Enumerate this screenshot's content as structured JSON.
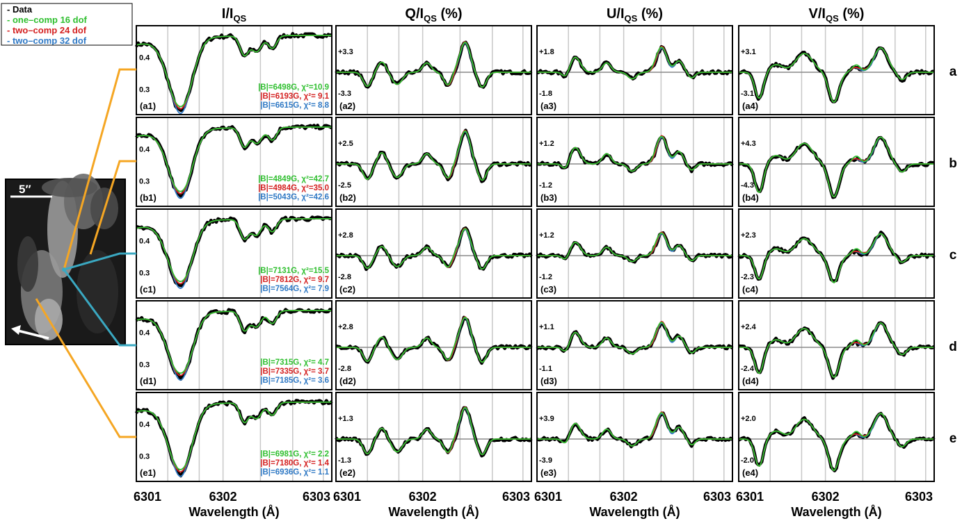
{
  "chart_data": {
    "type": "line",
    "column_titles": [
      {
        "main": "I/I",
        "sub": "QS",
        "suffix": ""
      },
      {
        "main": "Q/I",
        "sub": "QS",
        "suffix": " (%)"
      },
      {
        "main": "U/I",
        "sub": "QS",
        "suffix": " (%)"
      },
      {
        "main": "V/I",
        "sub": "QS",
        "suffix": " (%)"
      }
    ],
    "row_labels": [
      "a",
      "b",
      "c",
      "d",
      "e"
    ],
    "xlabel": "Wavelength (Å)",
    "xlim": [
      6300.98,
      6303.28
    ],
    "x_ticks": [
      "6301",
      "6302",
      "6303"
    ],
    "x_tick_values": [
      6301,
      6302,
      6303
    ],
    "grid_x": [
      6301.35,
      6301.72,
      6302.0,
      6302.44,
      6302.82,
      6303.18
    ],
    "legend": [
      {
        "label": "Data",
        "color": "#000000"
      },
      {
        "label": "one–comp 16 dof",
        "color": "#2fbf2f"
      },
      {
        "label": "two–comp 24 dof",
        "color": "#d42020"
      },
      {
        "label": "two–comp 32 dof",
        "color": "#2e78c4"
      }
    ],
    "series_colors": {
      "data": "#000000",
      "one": "#2fbf2f",
      "two24": "#d42020",
      "two32": "#2e78c4"
    },
    "intensity_ticks": [
      "0.4",
      "0.3"
    ],
    "intensity_tick_values": [
      0.4,
      0.3
    ],
    "intensity_ylim": [
      0.22,
      0.5
    ],
    "panel_labels": [
      [
        "(a1)",
        "(a2)",
        "(a3)",
        "(a4)"
      ],
      [
        "(b1)",
        "(b2)",
        "(b3)",
        "(b4)"
      ],
      [
        "(c1)",
        "(c2)",
        "(c3)",
        "(c4)"
      ],
      [
        "(d1)",
        "(d2)",
        "(d3)",
        "(d4)"
      ],
      [
        "(e1)",
        "(e2)",
        "(e3)",
        "(e4)"
      ]
    ],
    "polarization_ticks": [
      {
        "Q": [
          "+3.3",
          "-3.3"
        ],
        "U": [
          "+1.8",
          "-1.8"
        ],
        "V": [
          "+3.1",
          "-3.1"
        ]
      },
      {
        "Q": [
          "+2.5",
          "-2.5"
        ],
        "U": [
          "+1.2",
          "-1.2"
        ],
        "V": [
          "+4.3",
          "-4.3"
        ]
      },
      {
        "Q": [
          "+2.8",
          "-2.8"
        ],
        "U": [
          "+1.2",
          "-1.2"
        ],
        "V": [
          "+2.3",
          "-2.3"
        ]
      },
      {
        "Q": [
          "+2.8",
          "-2.8"
        ],
        "U": [
          "+1.1",
          "-1.1"
        ],
        "V": [
          "+2.4",
          "-2.4"
        ]
      },
      {
        "Q": [
          "+1.3",
          "-1.3"
        ],
        "U": [
          "+3.9",
          "-3.9"
        ],
        "V": [
          "+2.0",
          "-2.0"
        ]
      }
    ],
    "fit_annotations": [
      [
        {
          "text": "|B|=6498G, χ²=10.9",
          "color": "#2fbf2f"
        },
        {
          "text": "|B|=6193G, χ²= 9.1",
          "color": "#d42020"
        },
        {
          "text": "|B|=6615G, χ²= 8.8",
          "color": "#2e78c4"
        }
      ],
      [
        {
          "text": "|B|=4849G, χ²=42.7",
          "color": "#2fbf2f"
        },
        {
          "text": "|B|=4984G, χ²=35.0",
          "color": "#d42020"
        },
        {
          "text": "|B|=5043G, χ²=42.6",
          "color": "#2e78c4"
        }
      ],
      [
        {
          "text": "|B|=7131G, χ²=15.5",
          "color": "#2fbf2f"
        },
        {
          "text": "|B|=7812G, χ²= 9.7",
          "color": "#d42020"
        },
        {
          "text": "|B|=7564G, χ²= 7.9",
          "color": "#2e78c4"
        }
      ],
      [
        {
          "text": "|B|=7315G, χ²= 4.7",
          "color": "#2fbf2f"
        },
        {
          "text": "|B|=7335G, χ²= 3.7",
          "color": "#d42020"
        },
        {
          "text": "|B|=7185G, χ²= 3.6",
          "color": "#2e78c4"
        }
      ],
      [
        {
          "text": "|B|=6981G, χ²= 2.2",
          "color": "#2fbf2f"
        },
        {
          "text": "|B|=7180G, χ²= 1.4",
          "color": "#d42020"
        },
        {
          "text": "|B|=6936G, χ²= 1.1",
          "color": "#2e78c4"
        }
      ]
    ],
    "image_scale_label": "5′′",
    "connector_colors": {
      "orange": "#f5a623",
      "teal": "#3aa8c1"
    }
  }
}
